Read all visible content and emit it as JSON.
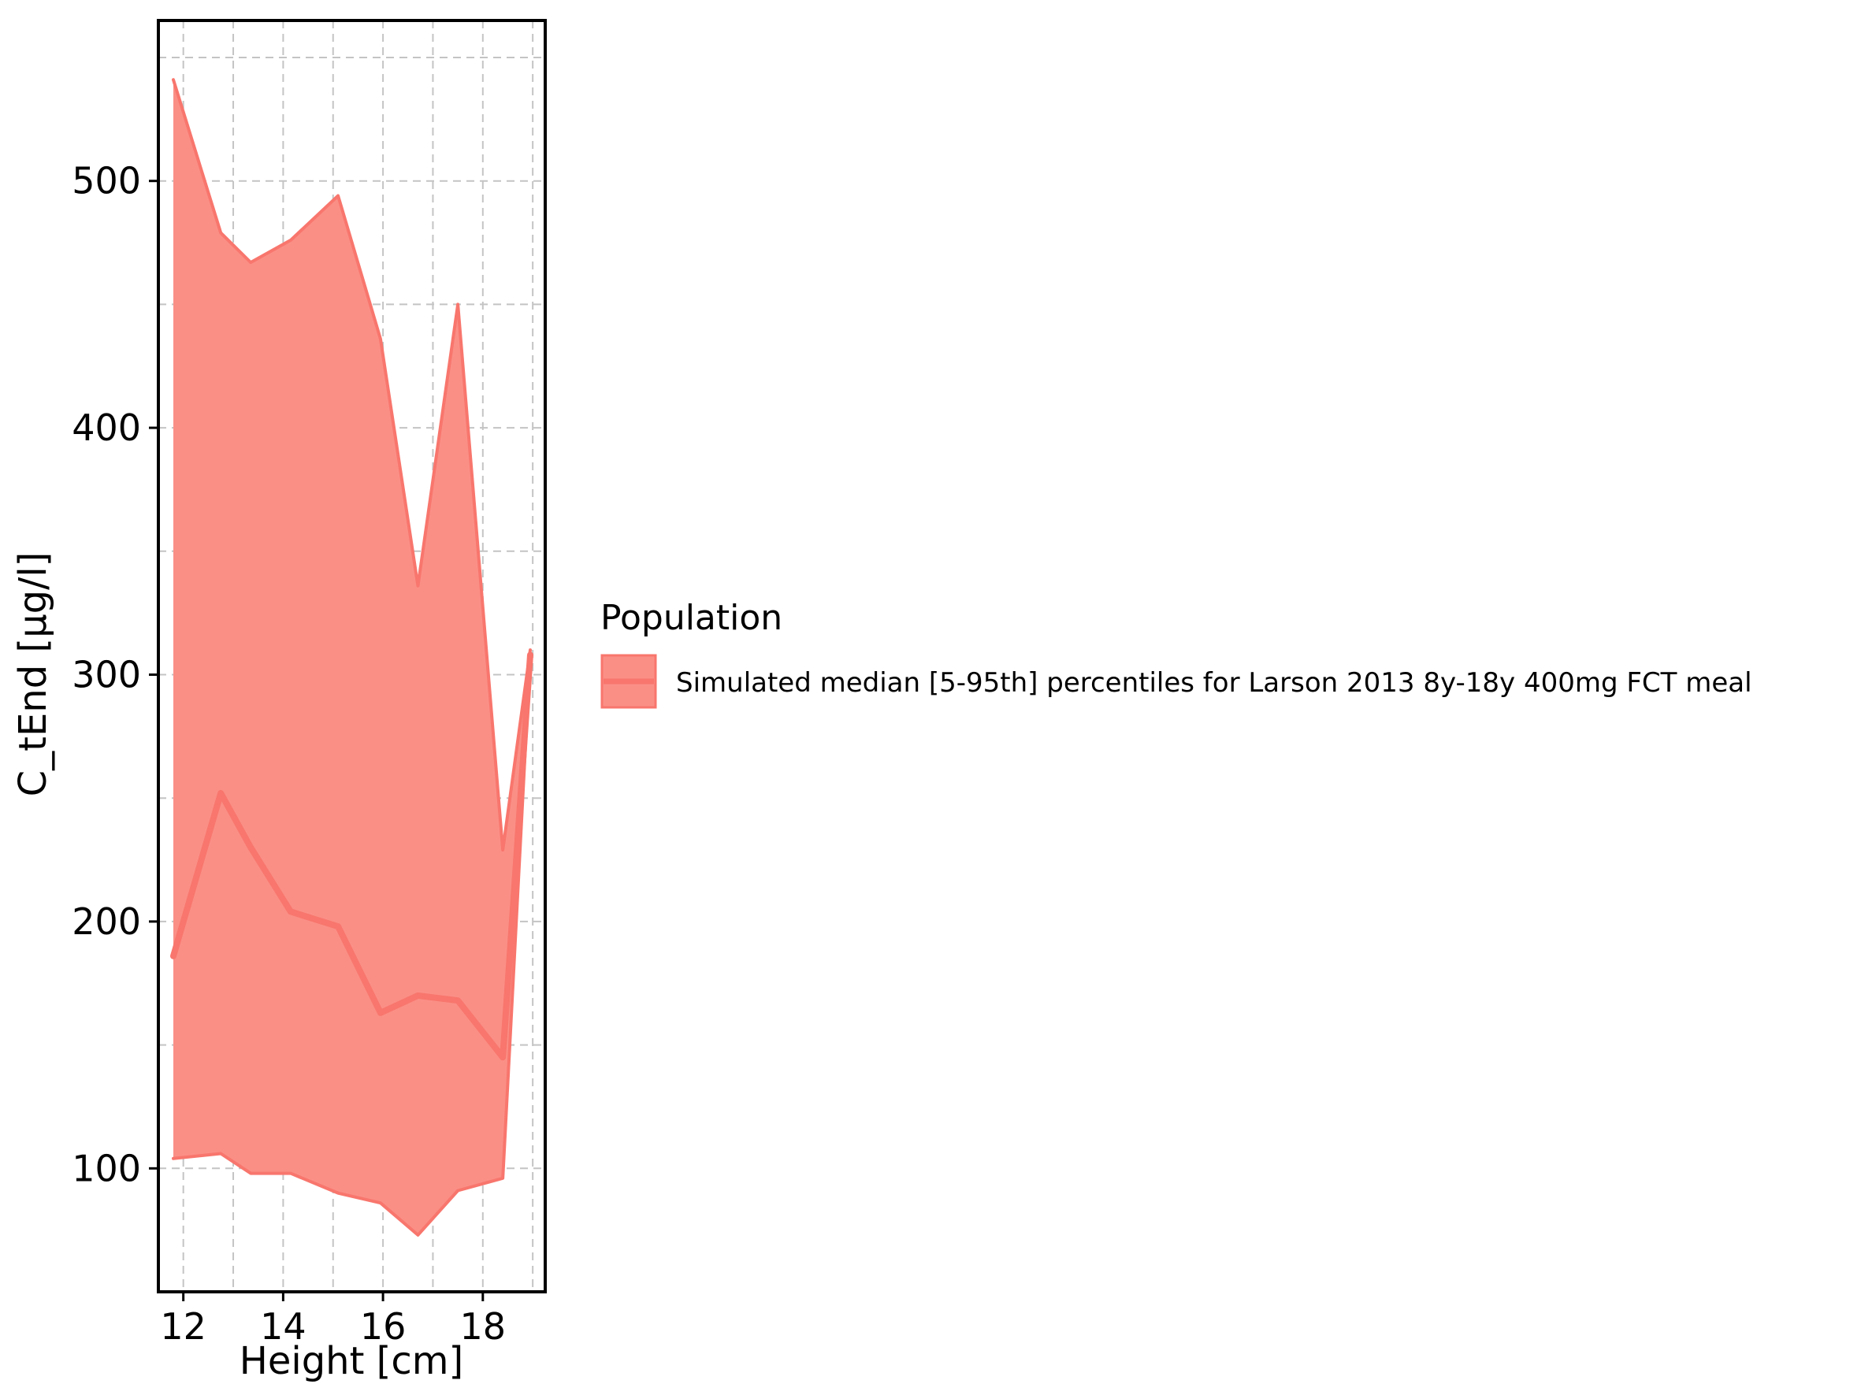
{
  "chart_data": {
    "type": "area",
    "xlabel": "Height [cm]",
    "ylabel": "C_tEnd [µg/l]",
    "xlim": [
      11.5,
      19.25
    ],
    "ylim": [
      50,
      565
    ],
    "x_ticks": [
      12,
      14,
      16,
      18
    ],
    "y_ticks": [
      100,
      200,
      300,
      400,
      500
    ],
    "x_minor_grid": [
      13,
      15,
      17,
      19
    ],
    "y_minor_grid": [
      150,
      250,
      350,
      450,
      550
    ],
    "grid": true,
    "legend": {
      "title": "Population",
      "placement": "right",
      "entries": [
        "Simulated median [5-95th] percentiles for Larson 2013 8y-18y 400mg FCT meal"
      ]
    },
    "colors": {
      "fill": "#fa8f86",
      "line": "#f8766d",
      "axis": "#000000",
      "grid": "#c4c4c4"
    },
    "x": [
      11.8,
      12.75,
      13.35,
      14.15,
      15.1,
      15.95,
      16.7,
      17.5,
      18.4,
      18.95
    ],
    "series": [
      {
        "role": "lower",
        "values": [
          104,
          106,
          98,
          98,
          90,
          86,
          73,
          91,
          96,
          308
        ]
      },
      {
        "role": "upper",
        "values": [
          541,
          479,
          467,
          476,
          494,
          436,
          336,
          450,
          229,
          310
        ]
      },
      {
        "role": "median",
        "values": [
          186,
          252,
          230,
          204,
          198,
          163,
          170,
          168,
          145,
          308
        ]
      }
    ]
  }
}
